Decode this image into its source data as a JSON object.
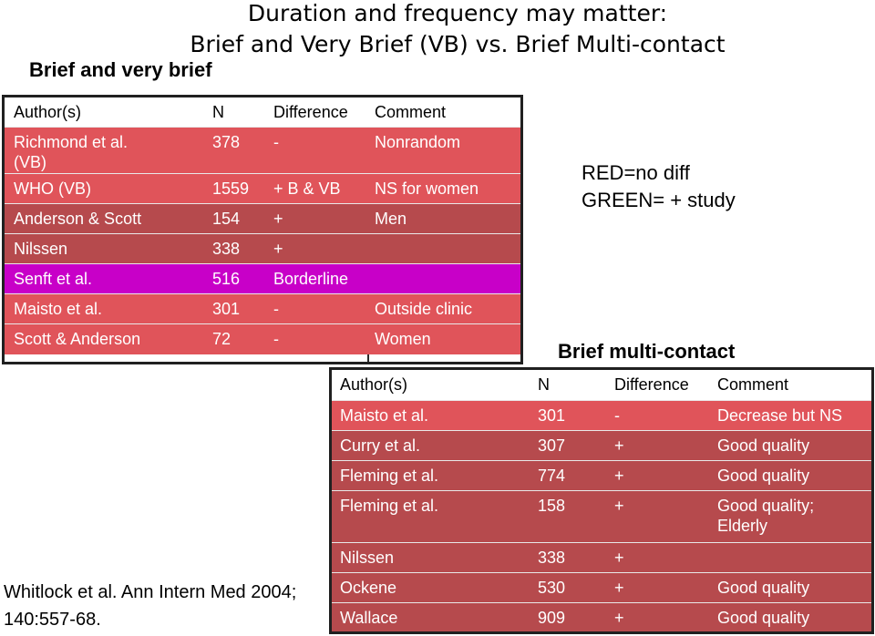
{
  "header": {
    "title_line1": "Duration and frequency may matter:",
    "title_line2": "Brief and Very Brief (VB) vs. Brief Multi-contact"
  },
  "section1": {
    "label": "Brief and very brief",
    "columns": [
      "Author(s)",
      "N",
      "Difference",
      "Comment"
    ],
    "rows": [
      {
        "author": "Richmond et al.",
        "author2": "(VB)",
        "n": "378",
        "diff": "-",
        "comment": "Nonrandom",
        "color": "red"
      },
      {
        "author": "WHO (VB)",
        "author2": "",
        "n": "1559",
        "diff": "+ B & VB",
        "comment": "NS for women",
        "color": "red"
      },
      {
        "author": "Anderson & Scott",
        "author2": "",
        "n": "154",
        "diff": "+",
        "comment": "Men",
        "color": "brown"
      },
      {
        "author": "Nilssen",
        "author2": "",
        "n": "338",
        "diff": "+",
        "comment": "",
        "color": "brown"
      },
      {
        "author": "Senft et al.",
        "author2": "",
        "n": "516",
        "diff": "Borderline",
        "comment": "",
        "color": "magenta"
      },
      {
        "author": "Maisto et al.",
        "author2": "",
        "n": "301",
        "diff": "-",
        "comment": "Outside clinic",
        "color": "red"
      },
      {
        "author": "Scott & Anderson",
        "author2": "",
        "n": "72",
        "diff": "-",
        "comment": "Women",
        "color": "red"
      }
    ]
  },
  "section2": {
    "label": "Brief multi-contact",
    "columns": [
      "Author(s)",
      "N",
      "Difference",
      "Comment"
    ],
    "rows": [
      {
        "author": "Maisto et al.",
        "n": "301",
        "diff": "-",
        "comment": "Decrease but NS",
        "comment2": "",
        "color": "red"
      },
      {
        "author": "Curry et al.",
        "n": "307",
        "diff": "+",
        "comment": "Good quality",
        "comment2": "",
        "color": "brown"
      },
      {
        "author": "Fleming et al.",
        "n": "774",
        "diff": "+",
        "comment": "Good quality",
        "comment2": "",
        "color": "brown"
      },
      {
        "author": "Fleming et al.",
        "n": "158",
        "diff": "+",
        "comment": "Good quality;",
        "comment2": "Elderly",
        "color": "brown"
      },
      {
        "author": "Nilssen",
        "n": "338",
        "diff": "+",
        "comment": "",
        "comment2": "",
        "color": "brown"
      },
      {
        "author": "Ockene",
        "n": "530",
        "diff": "+",
        "comment": "Good quality",
        "comment2": "",
        "color": "brown"
      },
      {
        "author": "Wallace",
        "n": "909",
        "diff": "+",
        "comment": "Good quality",
        "comment2": "",
        "color": "brown"
      }
    ]
  },
  "legend": {
    "line1": "RED=no diff",
    "line2": "GREEN= + study"
  },
  "citation": {
    "line1": "Whitlock et al. Ann Intern Med 2004;",
    "line2": "140:557-68."
  },
  "colors": {
    "red": "#e0545a",
    "brown": "#b64a4d",
    "magenta": "#c800c8",
    "border": "#202020"
  }
}
